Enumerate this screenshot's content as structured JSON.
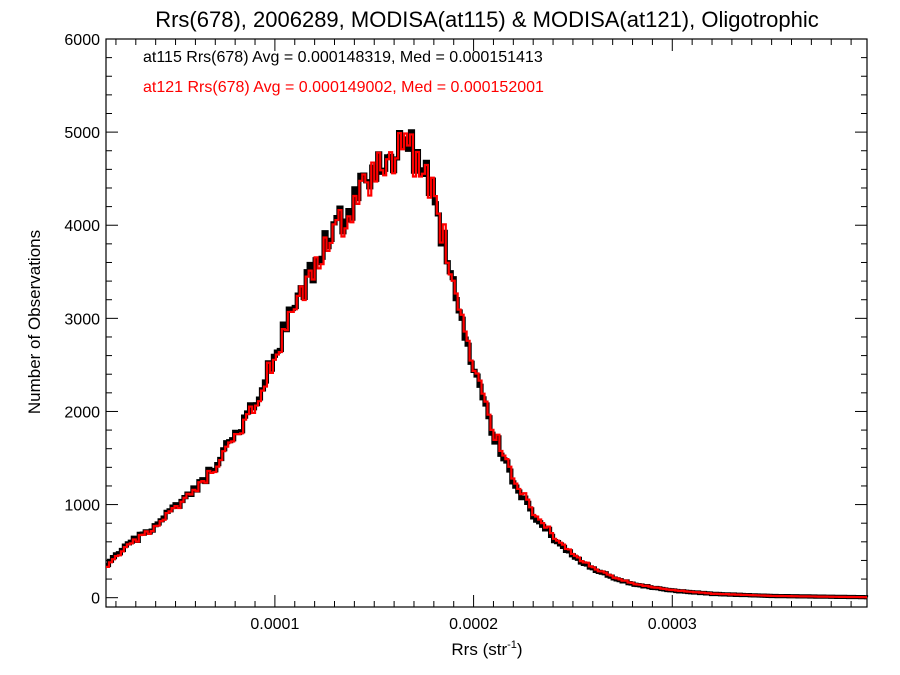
{
  "chart_data": {
    "type": "histogram-step",
    "title": "Rrs(678), 2006289, MODISA(at115) & MODISA(at121), Oligotrophic",
    "xlabel": "Rrs (str",
    "xlabel_exponent": "-1",
    "xlabel_suffix": ")",
    "ylabel": "Number of Observations",
    "xlim": [
      1.5e-05,
      0.000398
    ],
    "ylim": [
      -100,
      6000
    ],
    "x_ticks": [
      0.0001,
      0.0002,
      0.0003
    ],
    "x_tick_labels": [
      "0.0001",
      "0.0002",
      "0.0003"
    ],
    "y_ticks": [
      0,
      1000,
      2000,
      3000,
      4000,
      5000,
      6000
    ],
    "y_tick_labels": [
      "0",
      "1000",
      "2000",
      "3000",
      "4000",
      "5000",
      "6000"
    ],
    "bin_width": 1.5e-06,
    "annotations": [
      {
        "text": "at115 Rrs(678) Avg = 0.000148319, Med = 0.000151413",
        "color": "#000000"
      },
      {
        "text": "at121 Rrs(678) Avg = 0.000149002, Med = 0.000152001",
        "color": "#ff0000"
      }
    ],
    "series": [
      {
        "color": "#000000",
        "anchors": [
          [
            1.5e-05,
            350
          ],
          [
            2e-05,
            470
          ],
          [
            3e-05,
            640
          ],
          [
            4e-05,
            780
          ],
          [
            5e-05,
            980
          ],
          [
            6e-05,
            1170
          ],
          [
            7e-05,
            1430
          ],
          [
            8e-05,
            1740
          ],
          [
            9e-05,
            2130
          ],
          [
            0.0001,
            2620
          ],
          [
            0.00011,
            3130
          ],
          [
            0.00012,
            3560
          ],
          [
            0.00013,
            3990
          ],
          [
            0.00014,
            4280
          ],
          [
            0.00015,
            4560
          ],
          [
            0.000158,
            4760
          ],
          [
            0.000163,
            4900
          ],
          [
            0.000168,
            4800
          ],
          [
            0.000175,
            4560
          ],
          [
            0.00018,
            4230
          ],
          [
            0.000185,
            3780
          ],
          [
            0.00019,
            3260
          ],
          [
            0.000195,
            2800
          ],
          [
            0.0002,
            2370
          ],
          [
            0.00021,
            1730
          ],
          [
            0.00022,
            1230
          ],
          [
            0.00023,
            880
          ],
          [
            0.00024,
            630
          ],
          [
            0.00025,
            440
          ],
          [
            0.00026,
            300
          ],
          [
            0.00027,
            210
          ],
          [
            0.00028,
            140
          ],
          [
            0.0003,
            75
          ],
          [
            0.00032,
            40
          ],
          [
            0.00035,
            18
          ],
          [
            0.000398,
            5
          ]
        ]
      },
      {
        "color": "#ff0000",
        "anchors": [
          [
            1.5e-05,
            330
          ],
          [
            2e-05,
            450
          ],
          [
            3e-05,
            630
          ],
          [
            4e-05,
            770
          ],
          [
            5e-05,
            970
          ],
          [
            6e-05,
            1160
          ],
          [
            7e-05,
            1410
          ],
          [
            8e-05,
            1720
          ],
          [
            9e-05,
            2100
          ],
          [
            0.0001,
            2590
          ],
          [
            0.00011,
            3100
          ],
          [
            0.00012,
            3530
          ],
          [
            0.00013,
            3960
          ],
          [
            0.00014,
            4250
          ],
          [
            0.00015,
            4540
          ],
          [
            0.000158,
            4740
          ],
          [
            0.000163,
            4900
          ],
          [
            0.000168,
            4780
          ],
          [
            0.000175,
            4550
          ],
          [
            0.00018,
            4240
          ],
          [
            0.000185,
            3810
          ],
          [
            0.00019,
            3300
          ],
          [
            0.000195,
            2840
          ],
          [
            0.0002,
            2410
          ],
          [
            0.00021,
            1770
          ],
          [
            0.00022,
            1270
          ],
          [
            0.00023,
            910
          ],
          [
            0.00024,
            650
          ],
          [
            0.00025,
            460
          ],
          [
            0.00026,
            310
          ],
          [
            0.00027,
            220
          ],
          [
            0.00028,
            145
          ],
          [
            0.0003,
            80
          ],
          [
            0.00032,
            42
          ],
          [
            0.00035,
            19
          ],
          [
            0.000398,
            5
          ]
        ]
      }
    ]
  }
}
